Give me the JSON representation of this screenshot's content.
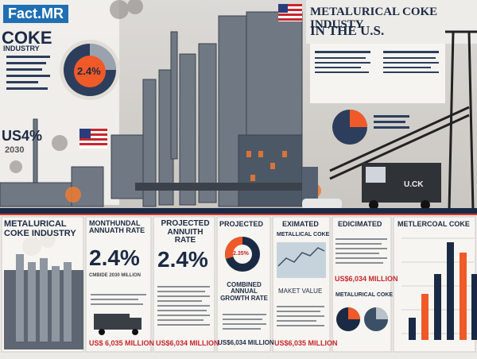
{
  "header": {
    "logo": "Fact.MR",
    "title_line1": "METALURICAL COKE INDUSTY",
    "title_line2": "IN THE U.S."
  },
  "left_panel": {
    "title": "COKE",
    "subtitle": "INDUSTRY",
    "donut_label": "2.4%",
    "stat": "US4%",
    "year": "2030"
  },
  "truck_label": "U.CK",
  "panels": [
    {
      "title": "METALURICAL COKE INDUSTRY"
    },
    {
      "title": "MONTHUNDAL ANNUATH RATE",
      "value": "2.4%",
      "caption": "CMBIDE 2030 MILLION",
      "footer": "US$ 6,035 MILLION"
    },
    {
      "title": "PROJECTED ANNUITH RATE",
      "value": "2.4%",
      "footer": "US$6,034 MILLION"
    },
    {
      "title": "PROJECTED",
      "donut_label": "2.35%",
      "caption": "COMBINED ANNUAL GROWTH RATE",
      "footer": "US$6,034 MILLION"
    },
    {
      "title": "EXIMATED",
      "subtitle": "METALLICAL COKE",
      "caption": "MAKET VALUE",
      "footer": "US$6,035 MILLION"
    },
    {
      "title": "EDICIMATED",
      "value": "US$6,034 MILLION",
      "caption": "METALURICAL COKE"
    },
    {
      "title": "METLERCOAL COKE"
    }
  ]
}
